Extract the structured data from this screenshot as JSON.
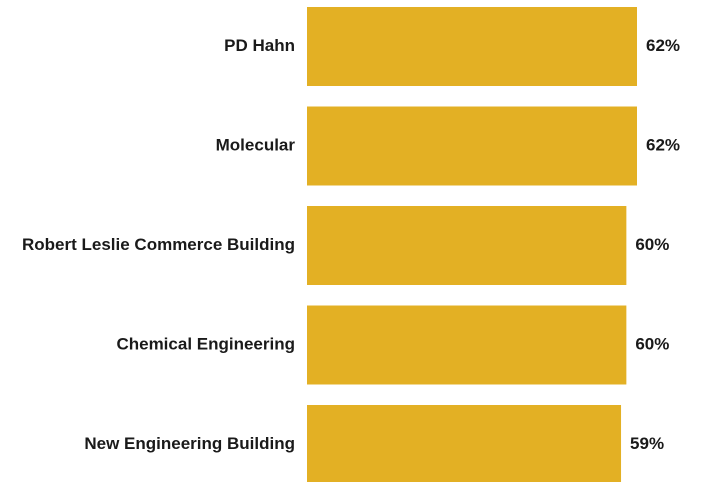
{
  "chart_data": {
    "type": "bar",
    "orientation": "horizontal",
    "categories": [
      "PD Hahn",
      "Molecular",
      "Robert Leslie Commerce Building",
      "Chemical Engineering",
      "New Engineering Building"
    ],
    "values": [
      62,
      62,
      60,
      60,
      59
    ],
    "value_labels": [
      "62%",
      "62%",
      "60%",
      "60%",
      "59%"
    ],
    "color": "#e3b024"
  }
}
